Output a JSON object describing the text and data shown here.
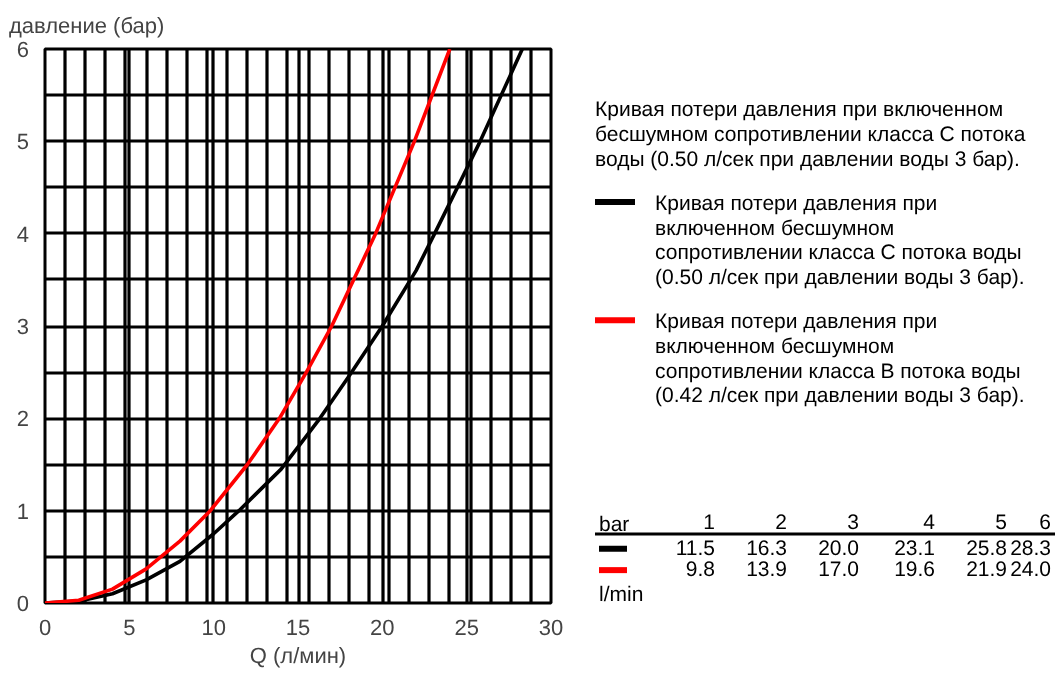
{
  "chart_data": {
    "type": "line",
    "xlabel": "Q (л/мин)",
    "ylabel": "давление (бар)",
    "xlim": [
      0,
      30
    ],
    "ylim": [
      0,
      6
    ],
    "xticks": [
      0,
      5,
      10,
      15,
      20,
      25,
      30,
      {
        "value": 1.2,
        "label": null
      },
      {
        "value": 2.4,
        "label": null
      },
      {
        "value": 3.6,
        "label": null
      },
      {
        "value": 4.8,
        "label": null
      },
      {
        "value": 6.0,
        "label": null
      },
      {
        "value": 7.2,
        "label": null
      },
      {
        "value": 8.4,
        "label": null
      },
      {
        "value": 9.6,
        "label": null
      },
      {
        "value": 10.8,
        "label": null
      },
      {
        "value": 12.0,
        "label": null
      },
      {
        "value": 13.2,
        "label": null
      },
      {
        "value": 14.4,
        "label": null
      },
      {
        "value": 15.6,
        "label": null
      },
      {
        "value": 16.8,
        "label": null
      },
      {
        "value": 18.0,
        "label": null
      },
      {
        "value": 19.2,
        "label": null
      },
      {
        "value": 20.4,
        "label": null
      },
      {
        "value": 21.6,
        "label": null
      },
      {
        "value": 22.8,
        "label": null
      },
      {
        "value": 24.0,
        "label": null
      },
      {
        "value": 25.2,
        "label": null
      },
      {
        "value": 26.4,
        "label": null
      },
      {
        "value": 27.6,
        "label": null
      },
      {
        "value": 28.8,
        "label": null
      }
    ],
    "yticks": [
      0,
      1,
      2,
      3,
      4,
      5,
      6,
      {
        "value": 0.5,
        "label": null
      },
      {
        "value": 1.5,
        "label": null
      },
      {
        "value": 2.5,
        "label": null
      },
      {
        "value": 3.5,
        "label": null
      },
      {
        "value": 4.5,
        "label": null
      },
      {
        "value": 5.5,
        "label": null
      }
    ],
    "grid": true,
    "legend": "right",
    "marker": "none",
    "line_style": "solid",
    "series": [
      {
        "name": "Кривая потери давления при\nвключенном бесшумном\nсопротивлении класса C потока воды\n(0.50 л/сек при давлении воды 3 бар).",
        "color": "#000000",
        "x": [
          0,
          2,
          4,
          6,
          8,
          10,
          11.5,
          14,
          16.3,
          18,
          20,
          22,
          23.1,
          25.8,
          28.3
        ],
        "values": [
          0,
          0.02,
          0.1,
          0.25,
          0.45,
          0.75,
          1,
          1.45,
          2,
          2.45,
          3,
          3.6,
          4,
          5,
          6
        ]
      },
      {
        "name": "Кривая потери давления при\nвключенном бесшумном\nсопротивлении класса B потока воды\n(0.42 л/сек при давлении воды 3 бар).",
        "color": "#ff0000",
        "x": [
          0,
          2,
          4,
          6,
          8,
          9.8,
          12,
          13.9,
          15.5,
          17,
          18.3,
          19.6,
          21.9,
          24
        ],
        "values": [
          0,
          0.03,
          0.15,
          0.37,
          0.67,
          1,
          1.5,
          2,
          2.5,
          3,
          3.5,
          4,
          5,
          6
        ]
      }
    ],
    "annotations": [
      "Кривая потери давления при включенном\nбесшумном сопротивлении класса C потока\nводы (0.50 л/сек при давлении воды 3 бар).",
      "bar",
      "1",
      "2",
      "3",
      "4",
      "5",
      "6",
      "11.5",
      "16.3",
      "20.0",
      "23.1",
      "25.8",
      "28.3",
      "9.8",
      "13.9",
      "17.0",
      "19.6",
      "21.9",
      "24.0",
      "l/min"
    ]
  }
}
